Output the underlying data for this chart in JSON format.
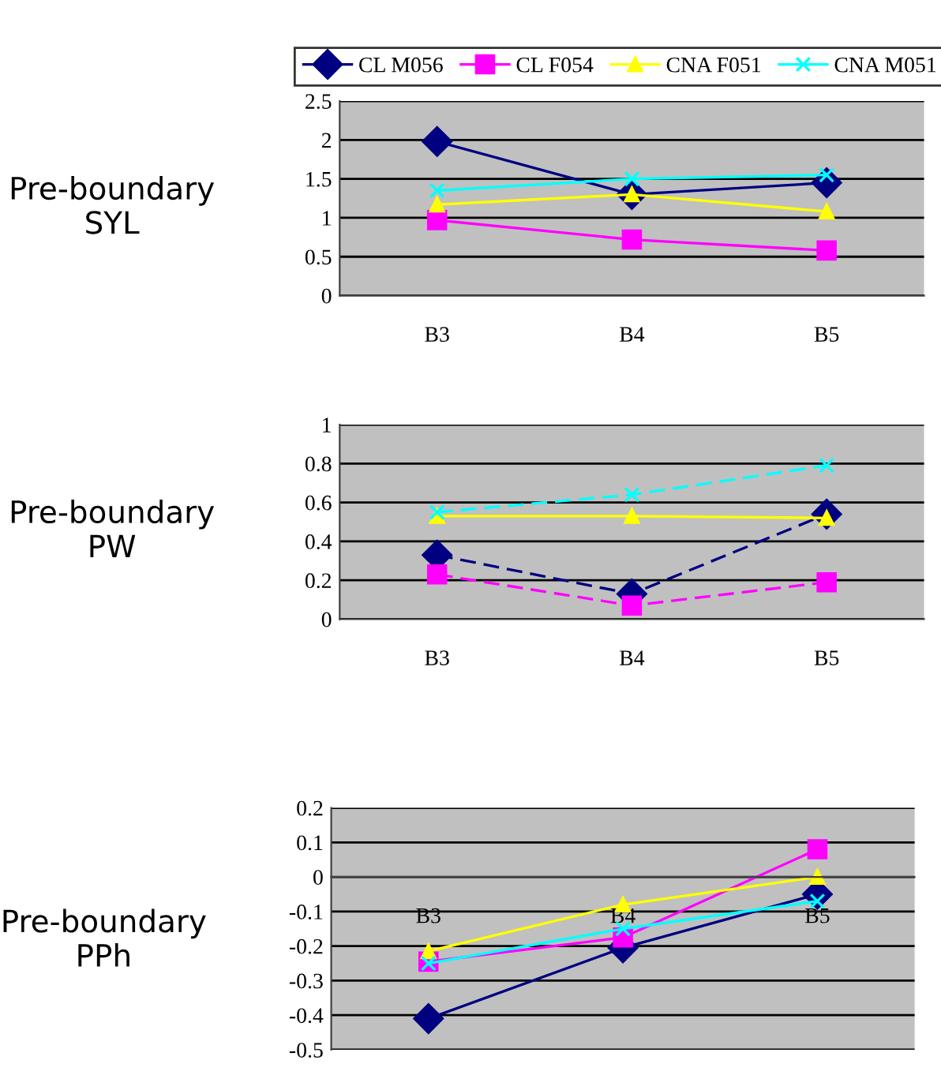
{
  "chart_data": [
    {
      "type": "line",
      "ylabel": "Pre-boundary\nSYL",
      "categories": [
        "B3",
        "B4",
        "B5"
      ],
      "ylim": [
        0,
        2.5
      ],
      "yticks": [
        0,
        0.5,
        1,
        1.5,
        2,
        2.5
      ],
      "grid": "y",
      "legend": "top",
      "series": [
        {
          "name": "CL M056",
          "color": "#000080",
          "marker": "diamond",
          "line_style": "solid",
          "values": [
            1.98,
            1.3,
            1.45
          ]
        },
        {
          "name": "CL F054",
          "color": "#ff00ff",
          "marker": "square",
          "line_style": "solid",
          "values": [
            0.97,
            0.72,
            0.58
          ]
        },
        {
          "name": "CNA F051",
          "color": "#ffff00",
          "marker": "triangle",
          "line_style": "solid",
          "values": [
            1.17,
            1.3,
            1.08
          ]
        },
        {
          "name": "CNA M051",
          "color": "#00ffff",
          "marker": "cross",
          "line_style": "solid",
          "values": [
            1.35,
            1.5,
            1.55
          ]
        }
      ]
    },
    {
      "type": "line",
      "ylabel": "Pre-boundary\nPW",
      "categories": [
        "B3",
        "B4",
        "B5"
      ],
      "ylim": [
        0,
        1
      ],
      "yticks": [
        0,
        0.2,
        0.4,
        0.6,
        0.8,
        1
      ],
      "grid": "y",
      "series": [
        {
          "color": "#000080",
          "marker": "diamond",
          "line_style": "dashed",
          "values": [
            0.33,
            0.13,
            0.54
          ]
        },
        {
          "color": "#ff00ff",
          "marker": "square",
          "line_style": "dashed",
          "values": [
            0.23,
            0.07,
            0.19
          ]
        },
        {
          "color": "#ffff00",
          "marker": "triangle",
          "line_style": "solid",
          "values": [
            0.53,
            0.53,
            0.52
          ]
        },
        {
          "color": "#00ffff",
          "marker": "cross",
          "line_style": "dashed",
          "values": [
            0.55,
            0.64,
            0.79
          ]
        }
      ]
    },
    {
      "type": "line",
      "ylabel": "Pre-boundary\nPPh",
      "categories": [
        "B3",
        "B4",
        "B5"
      ],
      "ylim": [
        -0.5,
        0.2
      ],
      "yticks": [
        -0.5,
        -0.4,
        -0.3,
        -0.2,
        -0.1,
        0,
        0.1,
        0.2
      ],
      "grid": "y",
      "series": [
        {
          "color": "#000080",
          "marker": "diamond",
          "line_style": "solid",
          "values": [
            -0.41,
            -0.205,
            -0.05
          ]
        },
        {
          "color": "#ff00ff",
          "marker": "square",
          "line_style": "solid",
          "values": [
            -0.245,
            -0.175,
            0.08
          ]
        },
        {
          "color": "#ffff00",
          "marker": "triangle",
          "line_style": "solid",
          "values": [
            -0.215,
            -0.08,
            0.0
          ]
        },
        {
          "color": "#00ffff",
          "marker": "cross",
          "line_style": "solid",
          "values": [
            -0.25,
            -0.15,
            -0.07
          ]
        }
      ]
    }
  ]
}
